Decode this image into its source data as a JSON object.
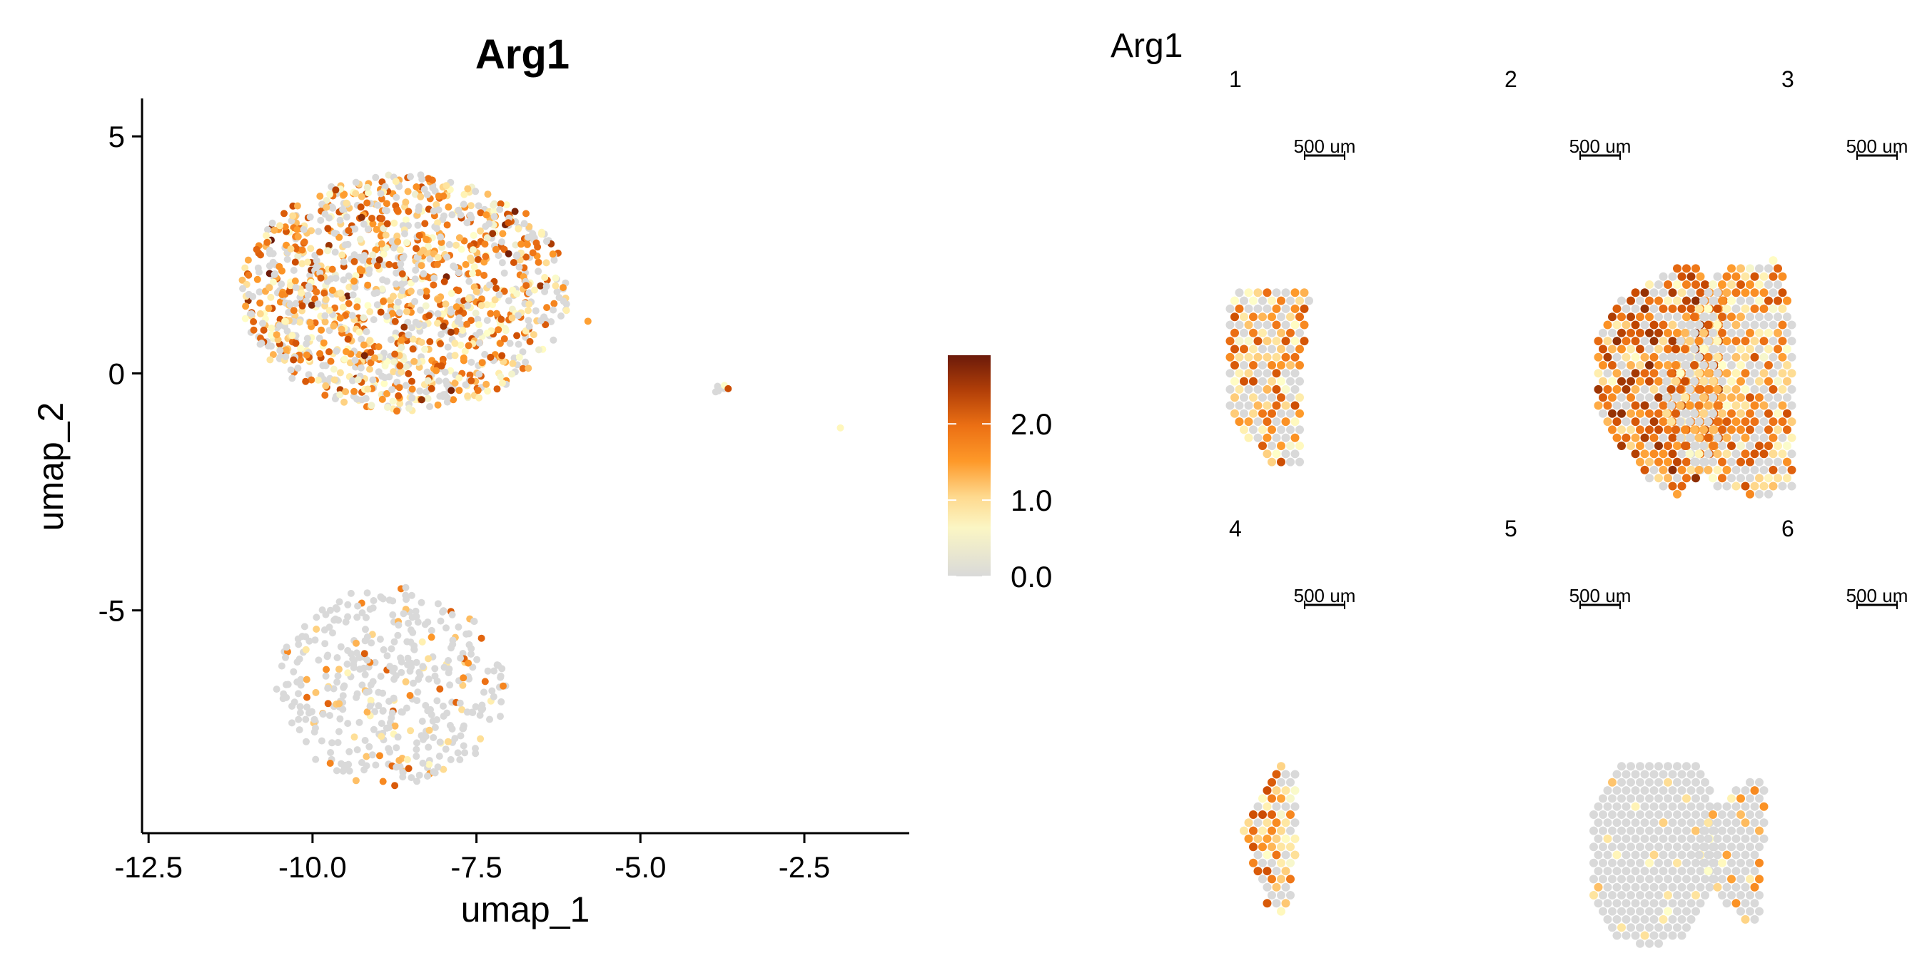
{
  "chart_data": [
    {
      "type": "scatter",
      "title": "Arg1",
      "xlabel": "umap_1",
      "ylabel": "umap_2",
      "xlim": [
        -12.6,
        -0.9
      ],
      "ylim": [
        -9.7,
        5.8
      ],
      "x_ticks": [
        -12.5,
        -10.0,
        -7.5,
        -5.0,
        -2.5
      ],
      "x_tick_labels": [
        "-12.5",
        "-10.0",
        "-7.5",
        "-5.0",
        "-2.5"
      ],
      "y_ticks": [
        5,
        0,
        -5
      ],
      "y_tick_labels": [
        "5",
        "0",
        "-5"
      ],
      "grid": false,
      "color_variable": "Arg1 expression",
      "clusters": [
        {
          "center": [
            -8.6,
            1.7
          ],
          "radius": [
            2.5,
            2.5
          ],
          "n_points": 1300,
          "expression_level": "mixed, mostly low-medium"
        },
        {
          "center": [
            -8.8,
            -6.6
          ],
          "radius": [
            1.75,
            2.1
          ],
          "n_points": 420,
          "expression_level": "mostly zero"
        },
        {
          "center": [
            -3.8,
            -0.3
          ],
          "radius": [
            0.15,
            0.1
          ],
          "n_points": 6,
          "expression_level": "medium"
        }
      ],
      "outlier_points": [
        {
          "x": -5.8,
          "y": 1.1,
          "value": 1.2
        },
        {
          "x": -1.95,
          "y": -1.15,
          "value": 0.5
        }
      ]
    },
    {
      "type": "heatmap",
      "title": "Arg1",
      "colorbar": {
        "ticks": [
          0.0,
          1.0,
          2.0
        ],
        "tick_labels": [
          "0.0",
          "1.0",
          "2.0"
        ],
        "range": [
          0.0,
          2.9
        ],
        "colors": [
          "#d9d9d9",
          "#ffffc8",
          "#fed98e",
          "#fe9929",
          "#ec7014",
          "#cc4c02",
          "#8c2d04",
          "#6b1a0a"
        ]
      },
      "panels": [
        {
          "label": "1",
          "scalebar": "500 um",
          "expression_level": "medium"
        },
        {
          "label": "2",
          "scalebar": "500 um",
          "expression_level": "high"
        },
        {
          "label": "3",
          "scalebar": "500 um",
          "expression_level": "medium"
        },
        {
          "label": "4",
          "scalebar": "500 um",
          "expression_level": "medium"
        },
        {
          "label": "5",
          "scalebar": "500 um",
          "expression_level": "very low"
        },
        {
          "label": "6",
          "scalebar": "500 um",
          "expression_level": "low"
        }
      ]
    }
  ]
}
